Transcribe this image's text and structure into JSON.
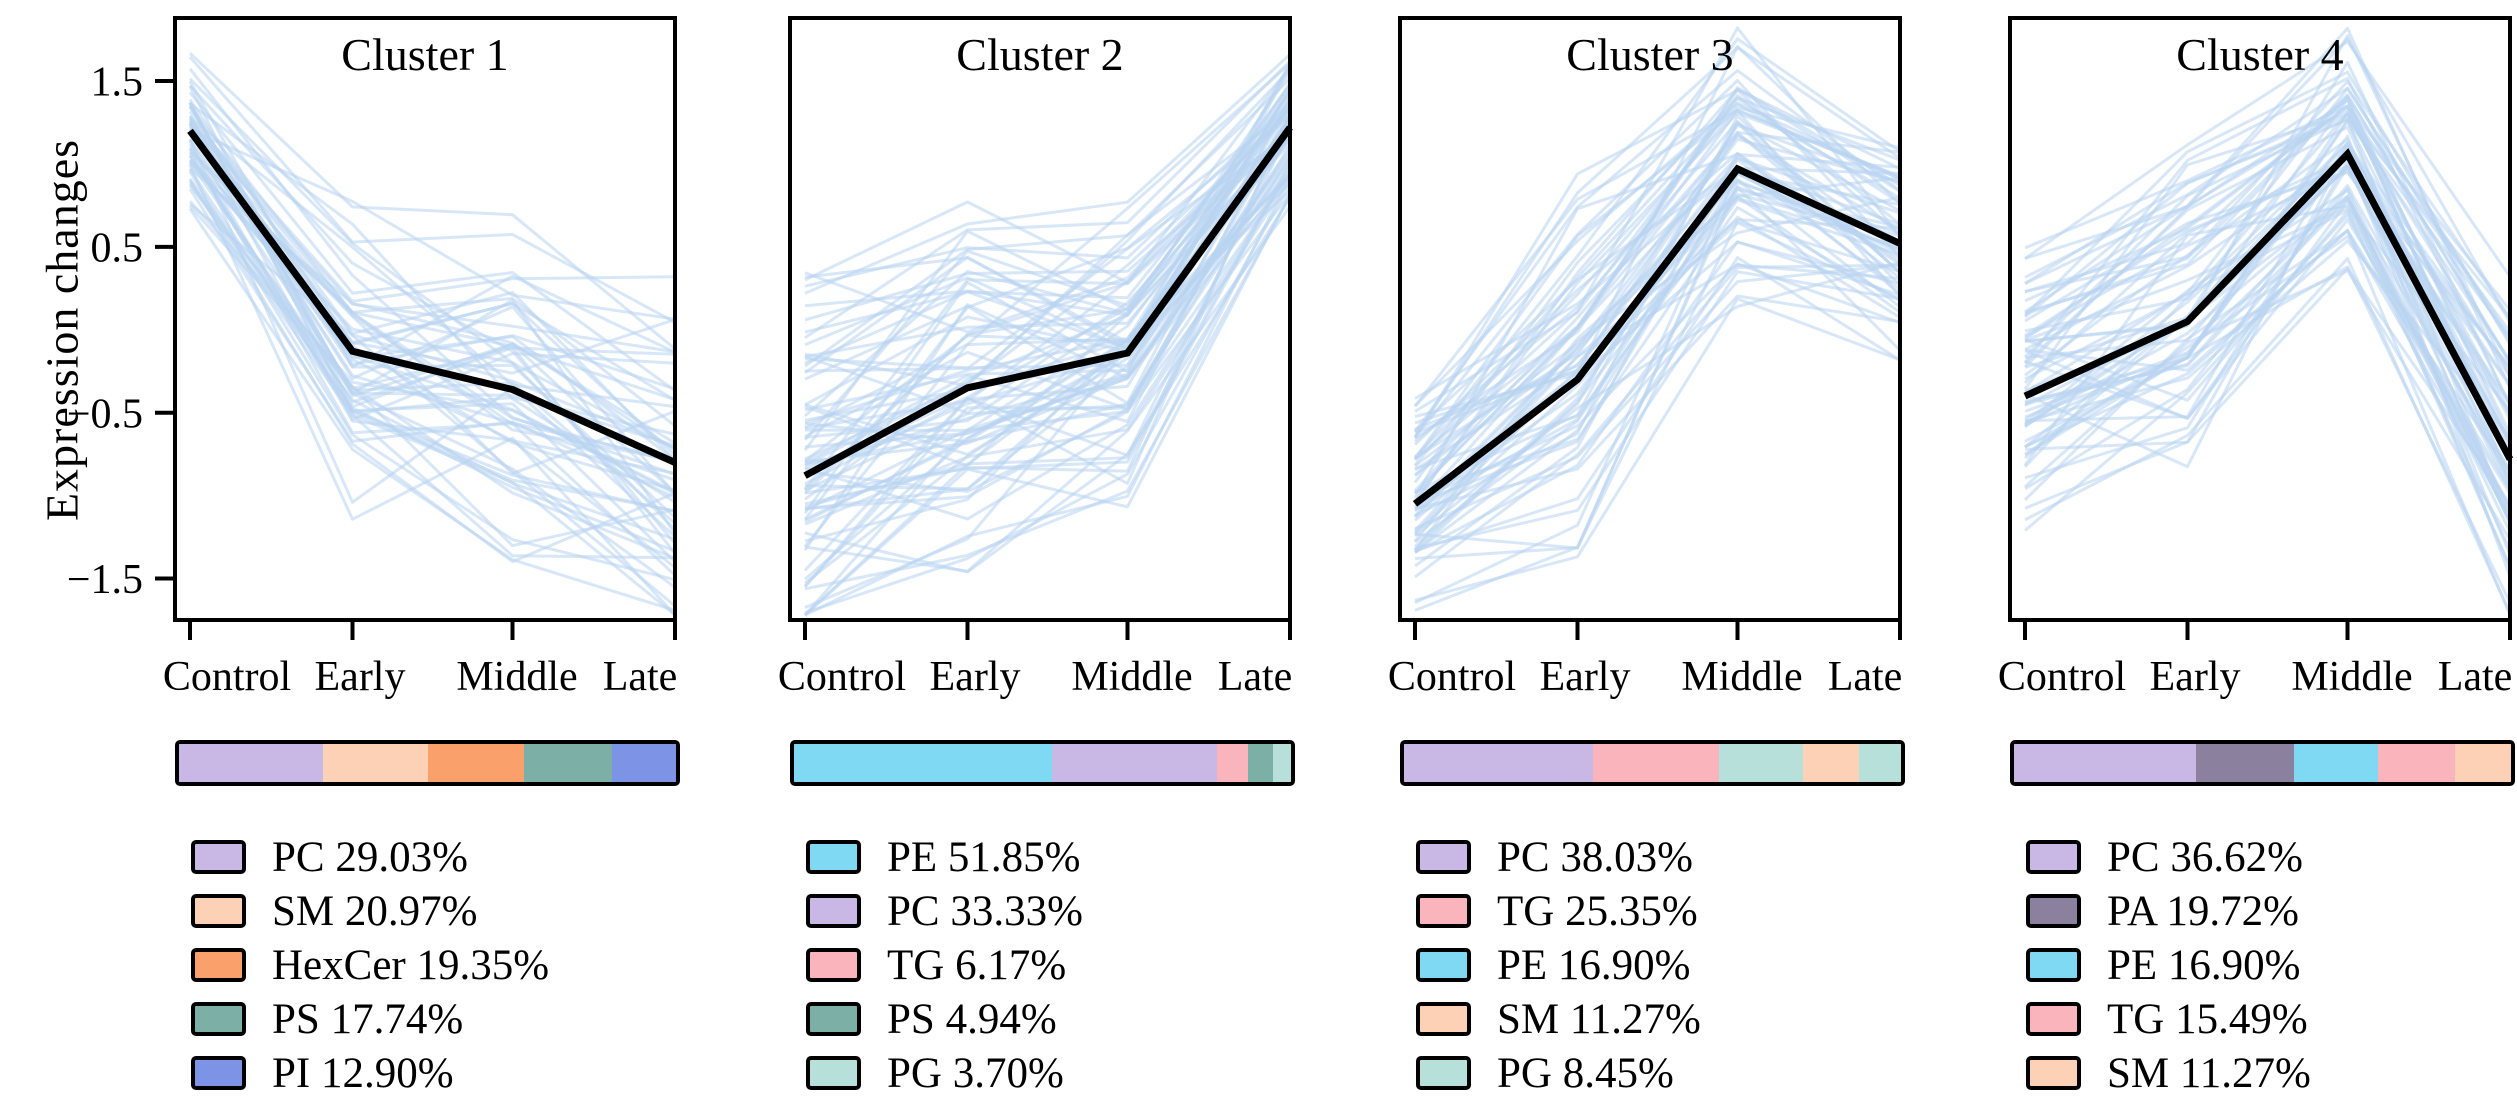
{
  "chart_data": {
    "type": "line",
    "shared": {
      "ylabel": "Expression changes",
      "xcategories": [
        "Control",
        "Early",
        "Middle",
        "Late"
      ],
      "ytick_labels": [
        "1.5",
        "0.5",
        "−0.5",
        "−1.5"
      ],
      "ytick_values": [
        1.5,
        0.5,
        -0.5,
        -1.5
      ],
      "ylim": [
        -1.75,
        1.88
      ],
      "grid": false,
      "member_line_color": "#b8d4f0",
      "mean_line_color": "#000000"
    },
    "clusters": [
      {
        "title": "Cluster 1",
        "mean_series": [
          1.2,
          -0.13,
          -0.36,
          -0.8
        ],
        "composition": [
          {
            "label": "PC",
            "pct": 29.03,
            "text": "PC 29.03%",
            "color": "#c9b8e6"
          },
          {
            "label": "SM",
            "pct": 20.97,
            "text": "SM 20.97%",
            "color": "#fcd1b6"
          },
          {
            "label": "HexCer",
            "pct": 19.35,
            "text": "HexCer 19.35%",
            "color": "#f9a06b"
          },
          {
            "label": "PS",
            "pct": 17.74,
            "text": "PS 17.74%",
            "color": "#7cafa6"
          },
          {
            "label": "PI",
            "pct": 12.9,
            "text": "PI 12.90%",
            "color": "#7d94e6"
          }
        ],
        "render": {
          "members": 62,
          "seed": 101,
          "spread": [
            0.38,
            0.8,
            0.8,
            0.85
          ]
        }
      },
      {
        "title": "Cluster 2",
        "mean_series": [
          -0.88,
          -0.35,
          -0.14,
          1.22
        ],
        "composition": [
          {
            "label": "PE",
            "pct": 51.85,
            "text": "PE 51.85%",
            "color": "#7fd9f2"
          },
          {
            "label": "PC",
            "pct": 33.33,
            "text": "PC 33.33%",
            "color": "#c9b8e6"
          },
          {
            "label": "TG",
            "pct": 6.17,
            "text": "TG 6.17%",
            "color": "#fab4bc"
          },
          {
            "label": "PS",
            "pct": 4.94,
            "text": "PS 4.94%",
            "color": "#7cafa6"
          },
          {
            "label": "PG",
            "pct": 3.7,
            "text": "PG 3.70%",
            "color": "#b7e0da"
          }
        ],
        "render": {
          "members": 81,
          "seed": 202,
          "spread": [
            0.85,
            0.8,
            0.72,
            0.35
          ]
        }
      },
      {
        "title": "Cluster 3",
        "mean_series": [
          -1.05,
          -0.3,
          0.97,
          0.52
        ],
        "composition": [
          {
            "label": "PC",
            "pct": 38.03,
            "text": "PC 38.03%",
            "color": "#c9b8e6"
          },
          {
            "label": "TG",
            "pct": 25.35,
            "text": "TG 25.35%",
            "color": "#fab4bc"
          },
          {
            "label": "PE",
            "pct": 16.9,
            "text": "PE 16.90%",
            "color": "#7fd9f2",
            "bar_color": "#b7e0da"
          },
          {
            "label": "SM",
            "pct": 11.27,
            "text": "SM 11.27%",
            "color": "#fcd1b6"
          },
          {
            "label": "PG",
            "pct": 8.45,
            "text": "PG 8.45%",
            "color": "#b7e0da"
          }
        ],
        "render": {
          "members": 71,
          "seed": 303,
          "spread": [
            0.5,
            0.85,
            0.6,
            0.5
          ]
        }
      },
      {
        "title": "Cluster 4",
        "mean_series": [
          -0.4,
          0.05,
          1.06,
          -0.78
        ],
        "composition": [
          {
            "label": "PC",
            "pct": 36.62,
            "text": "PC 36.62%",
            "color": "#c9b8e6"
          },
          {
            "label": "PA",
            "pct": 19.72,
            "text": "PA 19.72%",
            "color": "#8b809e"
          },
          {
            "label": "PE",
            "pct": 16.9,
            "text": "PE 16.90%",
            "color": "#7fd9f2"
          },
          {
            "label": "TG",
            "pct": 15.49,
            "text": "TG 15.49%",
            "color": "#fab4bc"
          },
          {
            "label": "SM",
            "pct": 11.27,
            "text": "SM 11.27%",
            "color": "#fcd1b6"
          }
        ],
        "render": {
          "members": 71,
          "seed": 404,
          "spread": [
            0.65,
            0.8,
            0.55,
            0.75
          ]
        }
      }
    ]
  }
}
